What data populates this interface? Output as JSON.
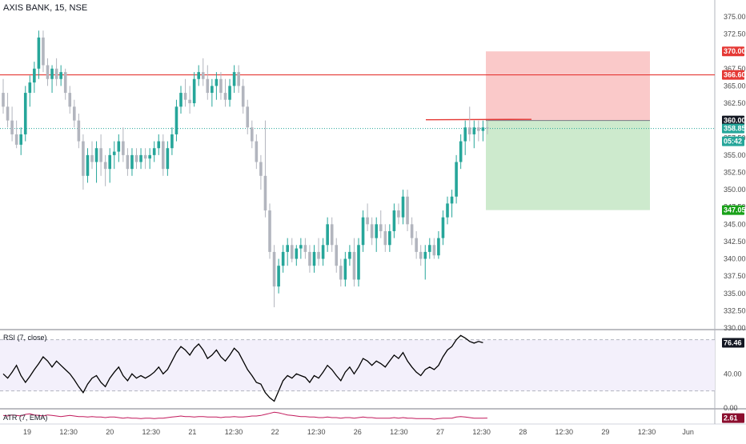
{
  "header": {
    "symbol_line": "AXIS BANK, 15, NSE",
    "rsi_title": "RSI (7, close)",
    "atr_title": "ATR (7, EMA)"
  },
  "colors": {
    "up": "#26a69a",
    "down": "#b2b5be",
    "resistance": "#e53935",
    "stop_zone": "#f9c0c0",
    "target_zone": "#c8e8c8",
    "rsi_line": "#000000",
    "atr_line": "#c2185b"
  },
  "chart_data": [
    {
      "type": "candlestick",
      "name": "price",
      "ylim": [
        330,
        376.5
      ],
      "y_ticks": [
        330.0,
        332.5,
        335.0,
        337.5,
        340.0,
        342.5,
        345.0,
        347.5,
        350.0,
        352.5,
        355.0,
        357.5,
        360.0,
        362.5,
        365.0,
        367.5,
        370.0,
        372.5,
        375.0
      ],
      "x_ticks": [
        "19",
        "12:30",
        "20",
        "12:30",
        "21",
        "12:30",
        "22",
        "12:30",
        "26",
        "12:30",
        "27",
        "12:30",
        "28",
        "12:30",
        "29",
        "12:30",
        "Jun"
      ],
      "horizontal_lines": [
        {
          "label": "366.60",
          "value": 366.6,
          "color": "#e53935"
        }
      ],
      "trade_box": {
        "entry": 360.0,
        "stop": 370.0,
        "target": 347.05
      },
      "price_labels": [
        {
          "text": "370.00",
          "value": 370.0,
          "bg": "#e53935"
        },
        {
          "text": "366.60",
          "value": 366.6,
          "bg": "#e53935"
        },
        {
          "text": "360.00",
          "value": 360.0,
          "bg": "#131722"
        },
        {
          "text": "358.85",
          "value": 358.85,
          "bg": "#26a69a"
        },
        {
          "text": "05:42",
          "value": 357.0,
          "bg": "#26a69a"
        },
        {
          "text": "347.05",
          "value": 347.05,
          "bg": "#19a119"
        }
      ],
      "ohlc": [
        [
          364,
          366,
          361,
          362
        ],
        [
          362,
          364,
          359,
          360
        ],
        [
          360,
          362,
          357,
          358
        ],
        [
          358,
          360,
          356,
          356.5
        ],
        [
          356.5,
          359,
          355,
          358
        ],
        [
          358,
          365,
          357,
          364
        ],
        [
          364,
          366.5,
          362,
          365.5
        ],
        [
          365.5,
          368.5,
          364,
          367.5
        ],
        [
          367.5,
          373,
          366,
          372
        ],
        [
          372,
          373,
          367,
          368
        ],
        [
          368,
          369,
          365,
          366
        ],
        [
          366,
          368,
          364,
          367.5
        ],
        [
          367.5,
          369,
          365,
          366
        ],
        [
          366,
          368,
          365,
          367
        ],
        [
          367,
          367.5,
          363,
          364
        ],
        [
          364,
          365,
          361,
          362
        ],
        [
          362,
          363,
          359,
          360
        ],
        [
          360,
          361,
          356,
          357
        ],
        [
          357,
          358,
          350,
          352
        ],
        [
          352,
          356,
          351,
          355
        ],
        [
          355,
          357,
          353,
          354
        ],
        [
          354,
          357,
          351,
          356
        ],
        [
          356,
          358,
          352,
          354
        ],
        [
          354,
          355,
          350.5,
          353
        ],
        [
          353,
          356,
          351,
          355
        ],
        [
          355,
          357,
          353,
          355.5
        ],
        [
          355.5,
          358,
          354,
          357
        ],
        [
          357,
          359,
          354,
          355
        ],
        [
          355,
          356,
          352,
          353
        ],
        [
          353,
          356,
          352,
          355
        ],
        [
          355,
          356,
          353,
          354
        ],
        [
          354,
          356,
          353,
          355
        ],
        [
          355,
          356,
          353,
          354.5
        ],
        [
          354.5,
          356,
          353,
          355
        ],
        [
          355,
          357,
          354,
          356
        ],
        [
          356,
          358,
          355,
          357
        ],
        [
          357,
          358,
          352,
          353
        ],
        [
          353,
          357,
          352,
          356
        ],
        [
          356,
          359,
          355,
          358
        ],
        [
          358,
          363,
          357,
          362
        ],
        [
          362,
          365,
          361,
          364
        ],
        [
          364,
          366,
          362,
          363
        ],
        [
          363,
          365,
          361,
          362.5
        ],
        [
          362.5,
          367,
          362,
          366
        ],
        [
          366,
          368,
          365,
          367
        ],
        [
          367,
          369,
          365,
          366
        ],
        [
          366,
          368,
          363,
          364
        ],
        [
          364,
          366,
          362,
          365
        ],
        [
          365,
          367,
          363,
          366
        ],
        [
          366,
          367,
          363,
          364
        ],
        [
          364,
          366,
          362,
          363
        ],
        [
          363,
          366,
          362,
          365
        ],
        [
          365,
          368,
          364,
          367
        ],
        [
          367,
          368,
          364,
          365
        ],
        [
          365,
          366,
          361,
          362
        ],
        [
          362,
          363,
          358,
          359
        ],
        [
          359,
          360,
          356,
          357
        ],
        [
          357,
          358,
          353,
          354
        ],
        [
          354,
          355,
          350,
          352
        ],
        [
          352,
          360,
          346,
          347
        ],
        [
          347,
          348,
          340,
          341
        ],
        [
          341,
          342,
          333,
          336
        ],
        [
          336,
          340,
          335,
          339
        ],
        [
          339,
          342,
          338,
          341
        ],
        [
          341,
          343,
          339,
          342
        ],
        [
          342,
          343,
          339.5,
          340
        ],
        [
          340,
          342,
          339,
          341.5
        ],
        [
          341.5,
          343,
          340,
          342
        ],
        [
          342,
          343,
          340,
          341
        ],
        [
          341,
          342,
          338,
          339
        ],
        [
          339,
          342,
          338,
          341
        ],
        [
          341,
          343,
          339,
          340
        ],
        [
          340,
          343,
          339,
          342
        ],
        [
          342,
          346,
          341,
          345
        ],
        [
          345,
          346,
          341,
          342
        ],
        [
          342,
          343,
          338,
          339
        ],
        [
          339,
          340,
          336,
          337
        ],
        [
          337,
          341,
          336,
          340
        ],
        [
          340,
          342,
          339,
          341
        ],
        [
          341,
          343,
          336,
          337
        ],
        [
          337,
          343,
          336,
          342
        ],
        [
          342,
          347,
          341,
          346
        ],
        [
          346,
          348,
          344,
          345
        ],
        [
          345,
          346,
          342,
          343
        ],
        [
          343,
          346,
          341,
          345
        ],
        [
          345,
          347,
          343,
          344
        ],
        [
          344,
          345,
          341,
          342
        ],
        [
          342,
          345,
          341,
          344
        ],
        [
          344,
          348,
          343,
          347
        ],
        [
          347,
          348,
          345,
          346
        ],
        [
          346,
          350,
          345,
          349
        ],
        [
          349,
          350,
          344,
          345
        ],
        [
          345,
          346,
          342,
          343
        ],
        [
          343,
          344,
          340,
          341
        ],
        [
          341,
          342,
          339,
          340
        ],
        [
          340,
          342,
          337,
          341
        ],
        [
          341,
          343,
          340,
          342
        ],
        [
          342,
          343,
          340,
          340.5
        ],
        [
          340.5,
          344,
          340,
          343
        ],
        [
          343,
          347,
          342,
          346
        ],
        [
          346,
          349,
          345,
          348
        ],
        [
          348,
          350,
          346,
          349
        ],
        [
          349,
          355,
          348,
          354
        ],
        [
          354,
          358,
          353,
          357
        ],
        [
          357,
          360,
          355,
          359
        ],
        [
          359,
          362,
          357,
          358
        ],
        [
          358,
          360,
          356,
          359
        ],
        [
          359,
          360,
          357,
          358.5
        ],
        [
          358.5,
          360,
          357,
          359
        ],
        [
          359,
          360,
          358,
          358.85
        ]
      ]
    },
    {
      "type": "line",
      "name": "RSI (7, close)",
      "ylim": [
        0,
        90
      ],
      "y_ticks": [
        0.0,
        40.0
      ],
      "bands": [
        20,
        80
      ],
      "last_value_label": "76.46",
      "values": [
        40,
        35,
        42,
        50,
        38,
        30,
        37,
        45,
        52,
        60,
        55,
        48,
        55,
        50,
        45,
        40,
        33,
        25,
        18,
        28,
        35,
        38,
        30,
        25,
        35,
        42,
        48,
        38,
        32,
        40,
        35,
        38,
        35,
        38,
        42,
        48,
        40,
        45,
        55,
        65,
        72,
        68,
        62,
        70,
        75,
        68,
        58,
        62,
        68,
        60,
        55,
        62,
        70,
        65,
        55,
        45,
        38,
        30,
        28,
        18,
        12,
        8,
        20,
        32,
        38,
        35,
        40,
        38,
        36,
        30,
        38,
        35,
        42,
        50,
        45,
        38,
        32,
        42,
        48,
        40,
        48,
        58,
        55,
        50,
        55,
        52,
        48,
        55,
        62,
        58,
        65,
        55,
        48,
        42,
        38,
        45,
        48,
        45,
        50,
        60,
        68,
        72,
        80,
        85,
        82,
        78,
        76,
        78,
        76.46
      ]
    },
    {
      "type": "line",
      "name": "ATR (7, EMA)",
      "ylim": [
        1.5,
        4.2
      ],
      "y_ticks": [],
      "last_value_label": "2.61",
      "values": [
        3.1,
        3.0,
        3.2,
        3.1,
        3.0,
        3.3,
        3.4,
        3.2,
        3.1,
        3.0,
        3.2,
        3.1,
        3.0,
        2.9,
        3.0,
        3.1,
        3.0,
        2.9,
        2.9,
        2.8,
        2.9,
        2.8,
        2.8,
        2.7,
        2.8,
        2.8,
        2.7,
        2.6,
        2.7,
        2.6,
        2.6,
        2.5,
        2.6,
        2.6,
        2.5,
        2.6,
        2.6,
        2.7,
        2.8,
        2.9,
        3.0,
        2.9,
        2.9,
        2.8,
        2.9,
        2.9,
        2.8,
        2.8,
        2.8,
        2.7,
        2.8,
        2.8,
        2.9,
        2.8,
        2.8,
        2.9,
        3.0,
        3.0,
        3.1,
        3.3,
        3.5,
        3.7,
        3.6,
        3.4,
        3.2,
        3.1,
        3.0,
        2.9,
        2.9,
        2.8,
        2.8,
        2.7,
        2.7,
        2.8,
        2.7,
        2.7,
        2.6,
        2.7,
        2.7,
        2.6,
        2.7,
        2.8,
        2.7,
        2.7,
        2.6,
        2.6,
        2.6,
        2.6,
        2.7,
        2.6,
        2.7,
        2.6,
        2.6,
        2.5,
        2.5,
        2.5,
        2.5,
        2.4,
        2.5,
        2.6,
        2.6,
        2.6,
        2.8,
        2.9,
        2.8,
        2.7,
        2.6,
        2.6,
        2.6,
        2.61
      ]
    }
  ]
}
